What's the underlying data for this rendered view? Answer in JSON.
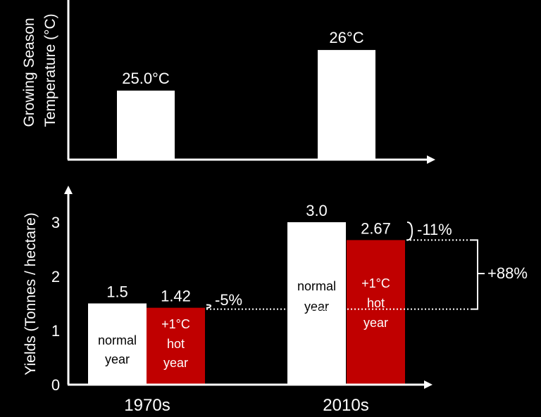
{
  "colors": {
    "background": "#000000",
    "normal": "#ffffff",
    "hot": "#c00000",
    "text": "#ffffff",
    "inner_normal_text": "#000000"
  },
  "chart_data": [
    {
      "type": "bar",
      "ylabel": "Growing Season Temperature (°C)",
      "ylabel_lines": [
        "Growing Season",
        "Temperature (°C)"
      ],
      "categories": [
        "1970s",
        "2010s"
      ],
      "values": [
        25.0,
        26
      ],
      "data_labels": [
        "25.0°C",
        "26°C"
      ],
      "ylim": [
        23.3,
        26.4
      ]
    },
    {
      "type": "bar",
      "ylabel": "Yields (Tonnes / hectare)",
      "categories": [
        "1970s",
        "2010s"
      ],
      "yticks": [
        "0",
        "1",
        "2",
        "3"
      ],
      "ylim": [
        0,
        3.55
      ],
      "series": [
        {
          "name": "normal year",
          "name_lines": [
            "normal",
            "year"
          ],
          "values": [
            1.5,
            3.0
          ],
          "data_labels": [
            "1.5",
            "3.0"
          ]
        },
        {
          "name": "+1°C hot year",
          "name_lines": [
            "+1°C",
            "hot",
            "year"
          ],
          "values": [
            1.42,
            2.67
          ],
          "data_labels": [
            "1.42",
            "2.67"
          ]
        }
      ],
      "annotations": {
        "change_1970s": "-5%",
        "change_2010s": "-11%",
        "growth": "+88%"
      }
    }
  ]
}
